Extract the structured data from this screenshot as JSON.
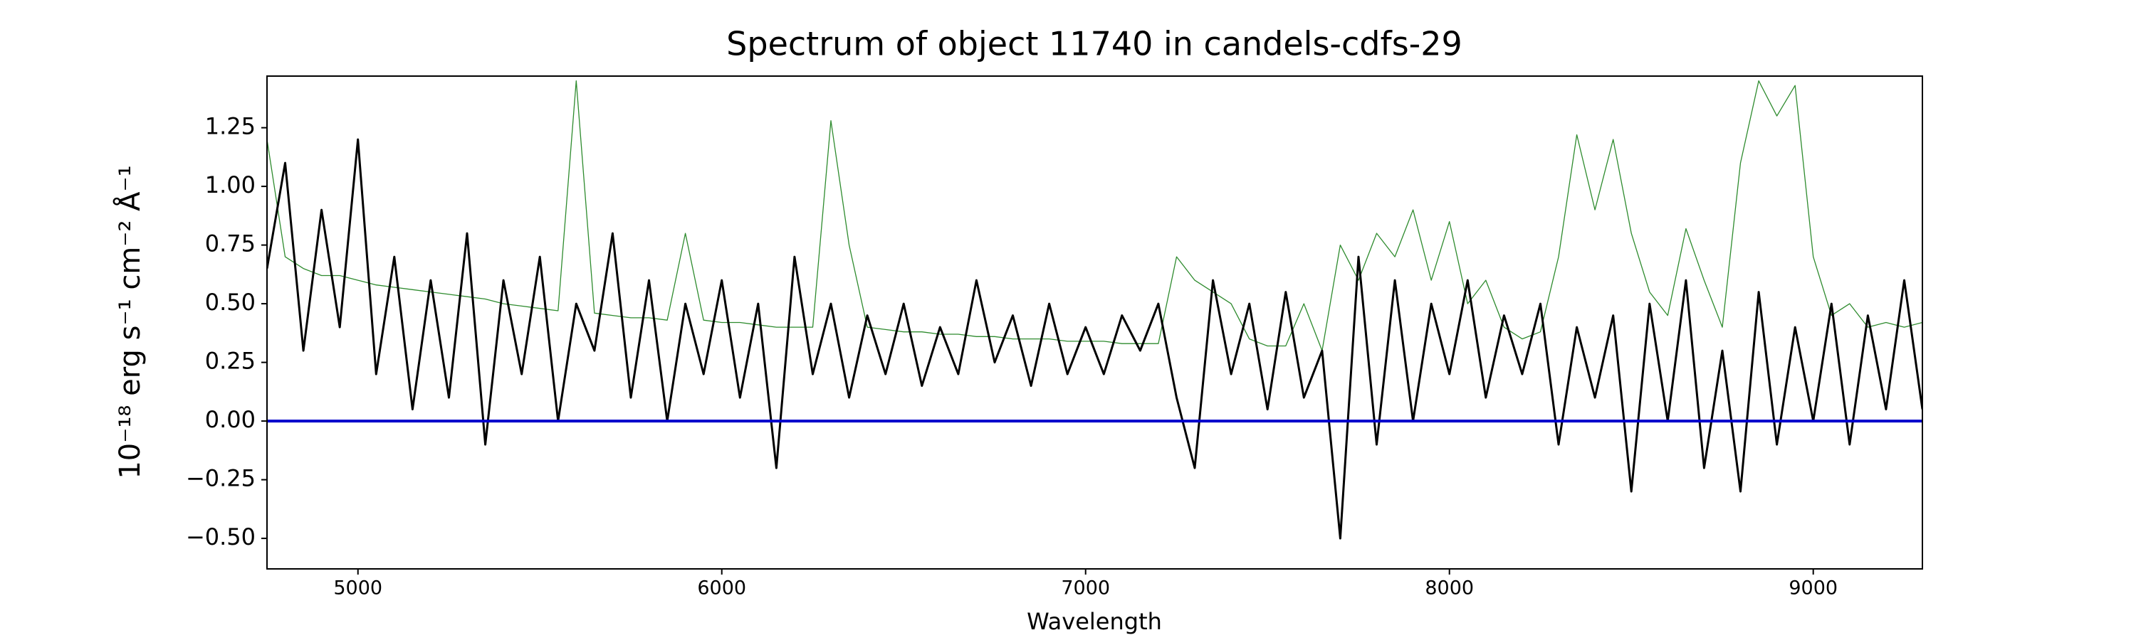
{
  "chart_data": {
    "type": "line",
    "title": "Spectrum of object 11740 in candels-cdfs-29",
    "xlabel": "Wavelength",
    "ylabel": "10⁻¹⁸ erg s⁻¹ cm⁻² Å⁻¹",
    "xlim": [
      4750,
      9300
    ],
    "ylim": [
      -0.63,
      1.47
    ],
    "xticks": [
      5000,
      6000,
      7000,
      8000,
      9000
    ],
    "yticks": [
      {
        "value": -0.5,
        "label": "−0.50"
      },
      {
        "value": -0.25,
        "label": "−0.25"
      },
      {
        "value": 0,
        "label": "0.00"
      },
      {
        "value": 0.25,
        "label": "0.25"
      },
      {
        "value": 0.5,
        "label": "0.50"
      },
      {
        "value": 0.75,
        "label": "0.75"
      },
      {
        "value": 1,
        "label": "1.00"
      },
      {
        "value": 1.25,
        "label": "1.25"
      }
    ],
    "x": [
      4750,
      4800,
      4850,
      4900,
      4950,
      5000,
      5050,
      5100,
      5150,
      5200,
      5250,
      5300,
      5350,
      5400,
      5450,
      5500,
      5550,
      5600,
      5650,
      5700,
      5750,
      5800,
      5850,
      5900,
      5950,
      6000,
      6050,
      6100,
      6150,
      6200,
      6250,
      6300,
      6350,
      6400,
      6450,
      6500,
      6550,
      6600,
      6650,
      6700,
      6750,
      6800,
      6850,
      6900,
      6950,
      7000,
      7050,
      7100,
      7150,
      7200,
      7250,
      7300,
      7350,
      7400,
      7450,
      7500,
      7550,
      7600,
      7650,
      7700,
      7750,
      7800,
      7850,
      7900,
      7950,
      8000,
      8050,
      8100,
      8150,
      8200,
      8250,
      8300,
      8350,
      8400,
      8450,
      8500,
      8550,
      8600,
      8650,
      8700,
      8750,
      8800,
      8850,
      8900,
      8950,
      9000,
      9050,
      9100,
      9150,
      9200,
      9250,
      9300
    ],
    "series": [
      {
        "color": "#2e8b2e",
        "width": 1.3,
        "values": [
          1.2,
          0.7,
          0.65,
          0.62,
          0.62,
          0.6,
          0.58,
          0.57,
          0.56,
          0.55,
          0.54,
          0.53,
          0.52,
          0.5,
          0.49,
          0.48,
          0.47,
          1.45,
          0.46,
          0.45,
          0.44,
          0.44,
          0.43,
          0.8,
          0.43,
          0.42,
          0.42,
          0.41,
          0.4,
          0.4,
          0.4,
          1.28,
          0.75,
          0.4,
          0.39,
          0.38,
          0.38,
          0.37,
          0.37,
          0.36,
          0.36,
          0.35,
          0.35,
          0.35,
          0.34,
          0.34,
          0.34,
          0.33,
          0.33,
          0.33,
          0.7,
          0.6,
          0.55,
          0.5,
          0.35,
          0.32,
          0.32,
          0.5,
          0.3,
          0.75,
          0.6,
          0.8,
          0.7,
          0.9,
          0.6,
          0.85,
          0.5,
          0.6,
          0.4,
          0.35,
          0.38,
          0.7,
          1.22,
          0.9,
          1.2,
          0.8,
          0.55,
          0.45,
          0.82,
          0.6,
          0.4,
          1.1,
          1.45,
          1.3,
          1.43,
          0.7,
          0.45,
          0.5,
          0.4,
          0.42,
          0.4,
          0.42
        ]
      },
      {
        "color": "#000000",
        "width": 3,
        "values": [
          0.65,
          1.1,
          0.3,
          0.9,
          0.4,
          1.2,
          0.2,
          0.7,
          0.05,
          0.6,
          0.1,
          0.8,
          -0.1,
          0.6,
          0.2,
          0.7,
          0.0,
          0.5,
          0.3,
          0.8,
          0.1,
          0.6,
          0.0,
          0.5,
          0.2,
          0.6,
          0.1,
          0.5,
          -0.2,
          0.7,
          0.2,
          0.5,
          0.1,
          0.45,
          0.2,
          0.5,
          0.15,
          0.4,
          0.2,
          0.6,
          0.25,
          0.45,
          0.15,
          0.5,
          0.2,
          0.4,
          0.2,
          0.45,
          0.3,
          0.5,
          0.1,
          -0.2,
          0.6,
          0.2,
          0.5,
          0.05,
          0.55,
          0.1,
          0.3,
          -0.5,
          0.7,
          -0.1,
          0.6,
          0.0,
          0.5,
          0.2,
          0.6,
          0.1,
          0.45,
          0.2,
          0.5,
          -0.1,
          0.4,
          0.1,
          0.45,
          -0.3,
          0.5,
          0.0,
          0.6,
          -0.2,
          0.3,
          -0.3,
          0.55,
          -0.1,
          0.4,
          0.0,
          0.5,
          -0.1,
          0.45,
          0.05,
          0.6,
          0.05
        ]
      }
    ],
    "zero_line": {
      "value": 0,
      "color": "#0000cc"
    }
  }
}
